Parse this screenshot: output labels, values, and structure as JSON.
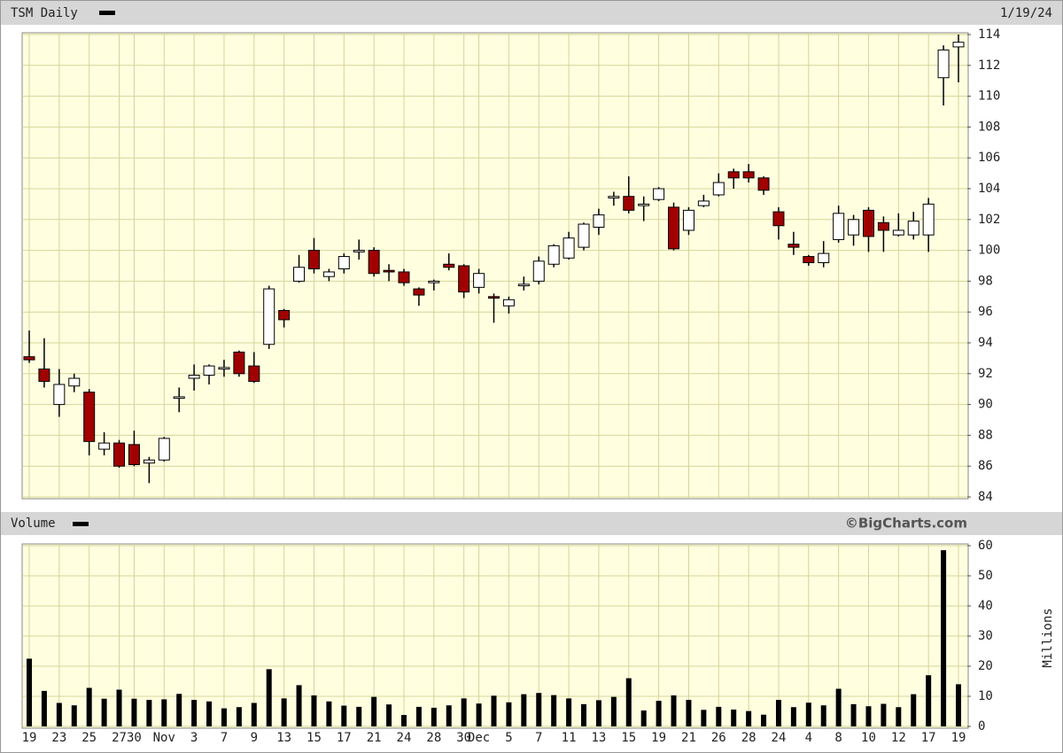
{
  "chart_data": [
    {
      "type": "candlestick",
      "title": "TSM Daily",
      "date_label": "1/19/24",
      "up_color": "#ffffff",
      "down_color": "#a00000",
      "open": [
        93.1,
        92.3,
        90.0,
        91.2,
        90.8,
        87.1,
        87.5,
        87.4,
        86.2,
        86.4,
        90.4,
        91.7,
        91.9,
        92.3,
        93.4,
        92.5,
        93.9,
        96.1,
        98.0,
        100.0,
        98.3,
        98.8,
        99.9,
        100.0,
        98.7,
        98.6,
        97.5,
        97.9,
        99.1,
        99.0,
        97.6,
        97.0,
        96.4,
        97.7,
        98.0,
        99.1,
        99.5,
        100.2,
        101.5,
        103.4,
        103.5,
        102.9,
        103.3,
        102.8,
        101.3,
        102.9,
        103.6,
        105.1,
        105.1,
        104.7,
        102.5,
        100.4,
        99.6,
        99.2,
        100.7,
        101.0,
        102.6,
        101.8,
        101.0,
        101.0,
        101.0,
        111.2,
        113.2
      ],
      "high": [
        94.8,
        94.3,
        92.3,
        92.0,
        91.0,
        88.2,
        87.7,
        88.3,
        86.6,
        87.9,
        91.1,
        92.6,
        92.6,
        92.9,
        93.5,
        93.4,
        97.7,
        96.2,
        99.7,
        100.8,
        98.8,
        99.8,
        100.7,
        100.2,
        99.1,
        98.8,
        97.6,
        98.1,
        99.8,
        99.1,
        98.8,
        97.2,
        97.0,
        98.3,
        99.6,
        100.4,
        101.2,
        101.8,
        102.7,
        103.8,
        104.8,
        103.5,
        104.1,
        103.1,
        102.8,
        103.6,
        105.0,
        105.3,
        105.6,
        104.8,
        102.8,
        101.2,
        99.7,
        100.6,
        102.9,
        102.3,
        102.8,
        102.2,
        102.4,
        102.5,
        103.4,
        113.3,
        114.0
      ],
      "low": [
        92.7,
        91.1,
        89.2,
        90.8,
        86.7,
        86.7,
        85.9,
        86.0,
        84.9,
        86.3,
        89.5,
        90.9,
        91.3,
        91.8,
        91.8,
        91.4,
        93.6,
        95.0,
        97.9,
        98.5,
        98.0,
        98.5,
        99.4,
        98.3,
        98.0,
        97.7,
        96.4,
        97.4,
        98.7,
        96.9,
        97.2,
        95.3,
        95.9,
        97.4,
        97.8,
        98.9,
        99.4,
        100.0,
        101.0,
        102.9,
        102.4,
        101.9,
        103.2,
        100.0,
        101.0,
        102.8,
        103.5,
        104.0,
        104.4,
        103.6,
        100.7,
        99.7,
        99.0,
        98.9,
        100.5,
        100.3,
        99.9,
        99.9,
        100.9,
        100.7,
        99.9,
        109.4,
        110.9
      ],
      "close": [
        92.9,
        91.5,
        91.3,
        91.7,
        87.6,
        87.5,
        86.0,
        86.1,
        86.4,
        87.8,
        90.5,
        91.9,
        92.5,
        92.4,
        92.0,
        91.5,
        97.5,
        95.5,
        98.9,
        98.8,
        98.6,
        99.6,
        100.0,
        98.5,
        98.6,
        97.9,
        97.1,
        98.0,
        98.9,
        97.3,
        98.5,
        96.9,
        96.8,
        97.8,
        99.3,
        100.3,
        100.8,
        101.7,
        102.3,
        103.5,
        102.6,
        103.0,
        104.0,
        100.1,
        102.6,
        103.2,
        104.4,
        104.7,
        104.7,
        103.9,
        101.6,
        100.2,
        99.2,
        99.8,
        102.4,
        102.0,
        100.9,
        101.3,
        101.3,
        101.9,
        103.0,
        113.0,
        113.5
      ],
      "ylim": [
        84,
        114
      ],
      "yticks": [
        84,
        86,
        88,
        90,
        92,
        94,
        96,
        98,
        100,
        102,
        104,
        106,
        108,
        110,
        112,
        114
      ],
      "grid": true
    },
    {
      "type": "bar",
      "title": "Volume",
      "annotation": "©BigCharts.com",
      "ylabel": "Millions",
      "color": "#000000",
      "categories": [
        "19",
        null,
        "23",
        null,
        "25",
        null,
        "27",
        "30",
        null,
        "Nov",
        null,
        "3",
        null,
        "7",
        null,
        "9",
        null,
        "13",
        null,
        "15",
        null,
        "17",
        null,
        "21",
        null,
        "24",
        null,
        "28",
        null,
        "30",
        "Dec",
        null,
        "5",
        null,
        "7",
        null,
        "11",
        null,
        "13",
        null,
        "15",
        null,
        "19",
        null,
        "21",
        null,
        "26",
        null,
        "28",
        null,
        "24",
        null,
        "4",
        null,
        "8",
        null,
        "10",
        null,
        "12",
        null,
        "17",
        null,
        "19"
      ],
      "values": [
        22.5,
        11.8,
        7.8,
        7,
        12.8,
        9.2,
        12.2,
        9.2,
        8.8,
        9,
        10.8,
        8.8,
        8.3,
        6,
        6.4,
        7.8,
        19,
        9.3,
        13.7,
        10.3,
        8.3,
        6.9,
        6.5,
        9.8,
        7.3,
        3.8,
        6.5,
        6.2,
        7,
        9.3,
        7.6,
        10.2,
        8,
        10.7,
        11.1,
        10.4,
        9.3,
        7.4,
        8.7,
        9.8,
        16,
        5.3,
        8.5,
        10.3,
        8.8,
        5.5,
        6.5,
        5.6,
        5.1,
        3.9,
        8.8,
        6.4,
        7.9,
        7,
        12.5,
        7.4,
        6.7,
        7.5,
        6.4,
        10.7,
        17,
        58.5,
        14
      ],
      "ylim": [
        0,
        60
      ],
      "yticks": [
        0,
        10,
        20,
        30,
        40,
        50,
        60
      ],
      "grid": true
    }
  ]
}
